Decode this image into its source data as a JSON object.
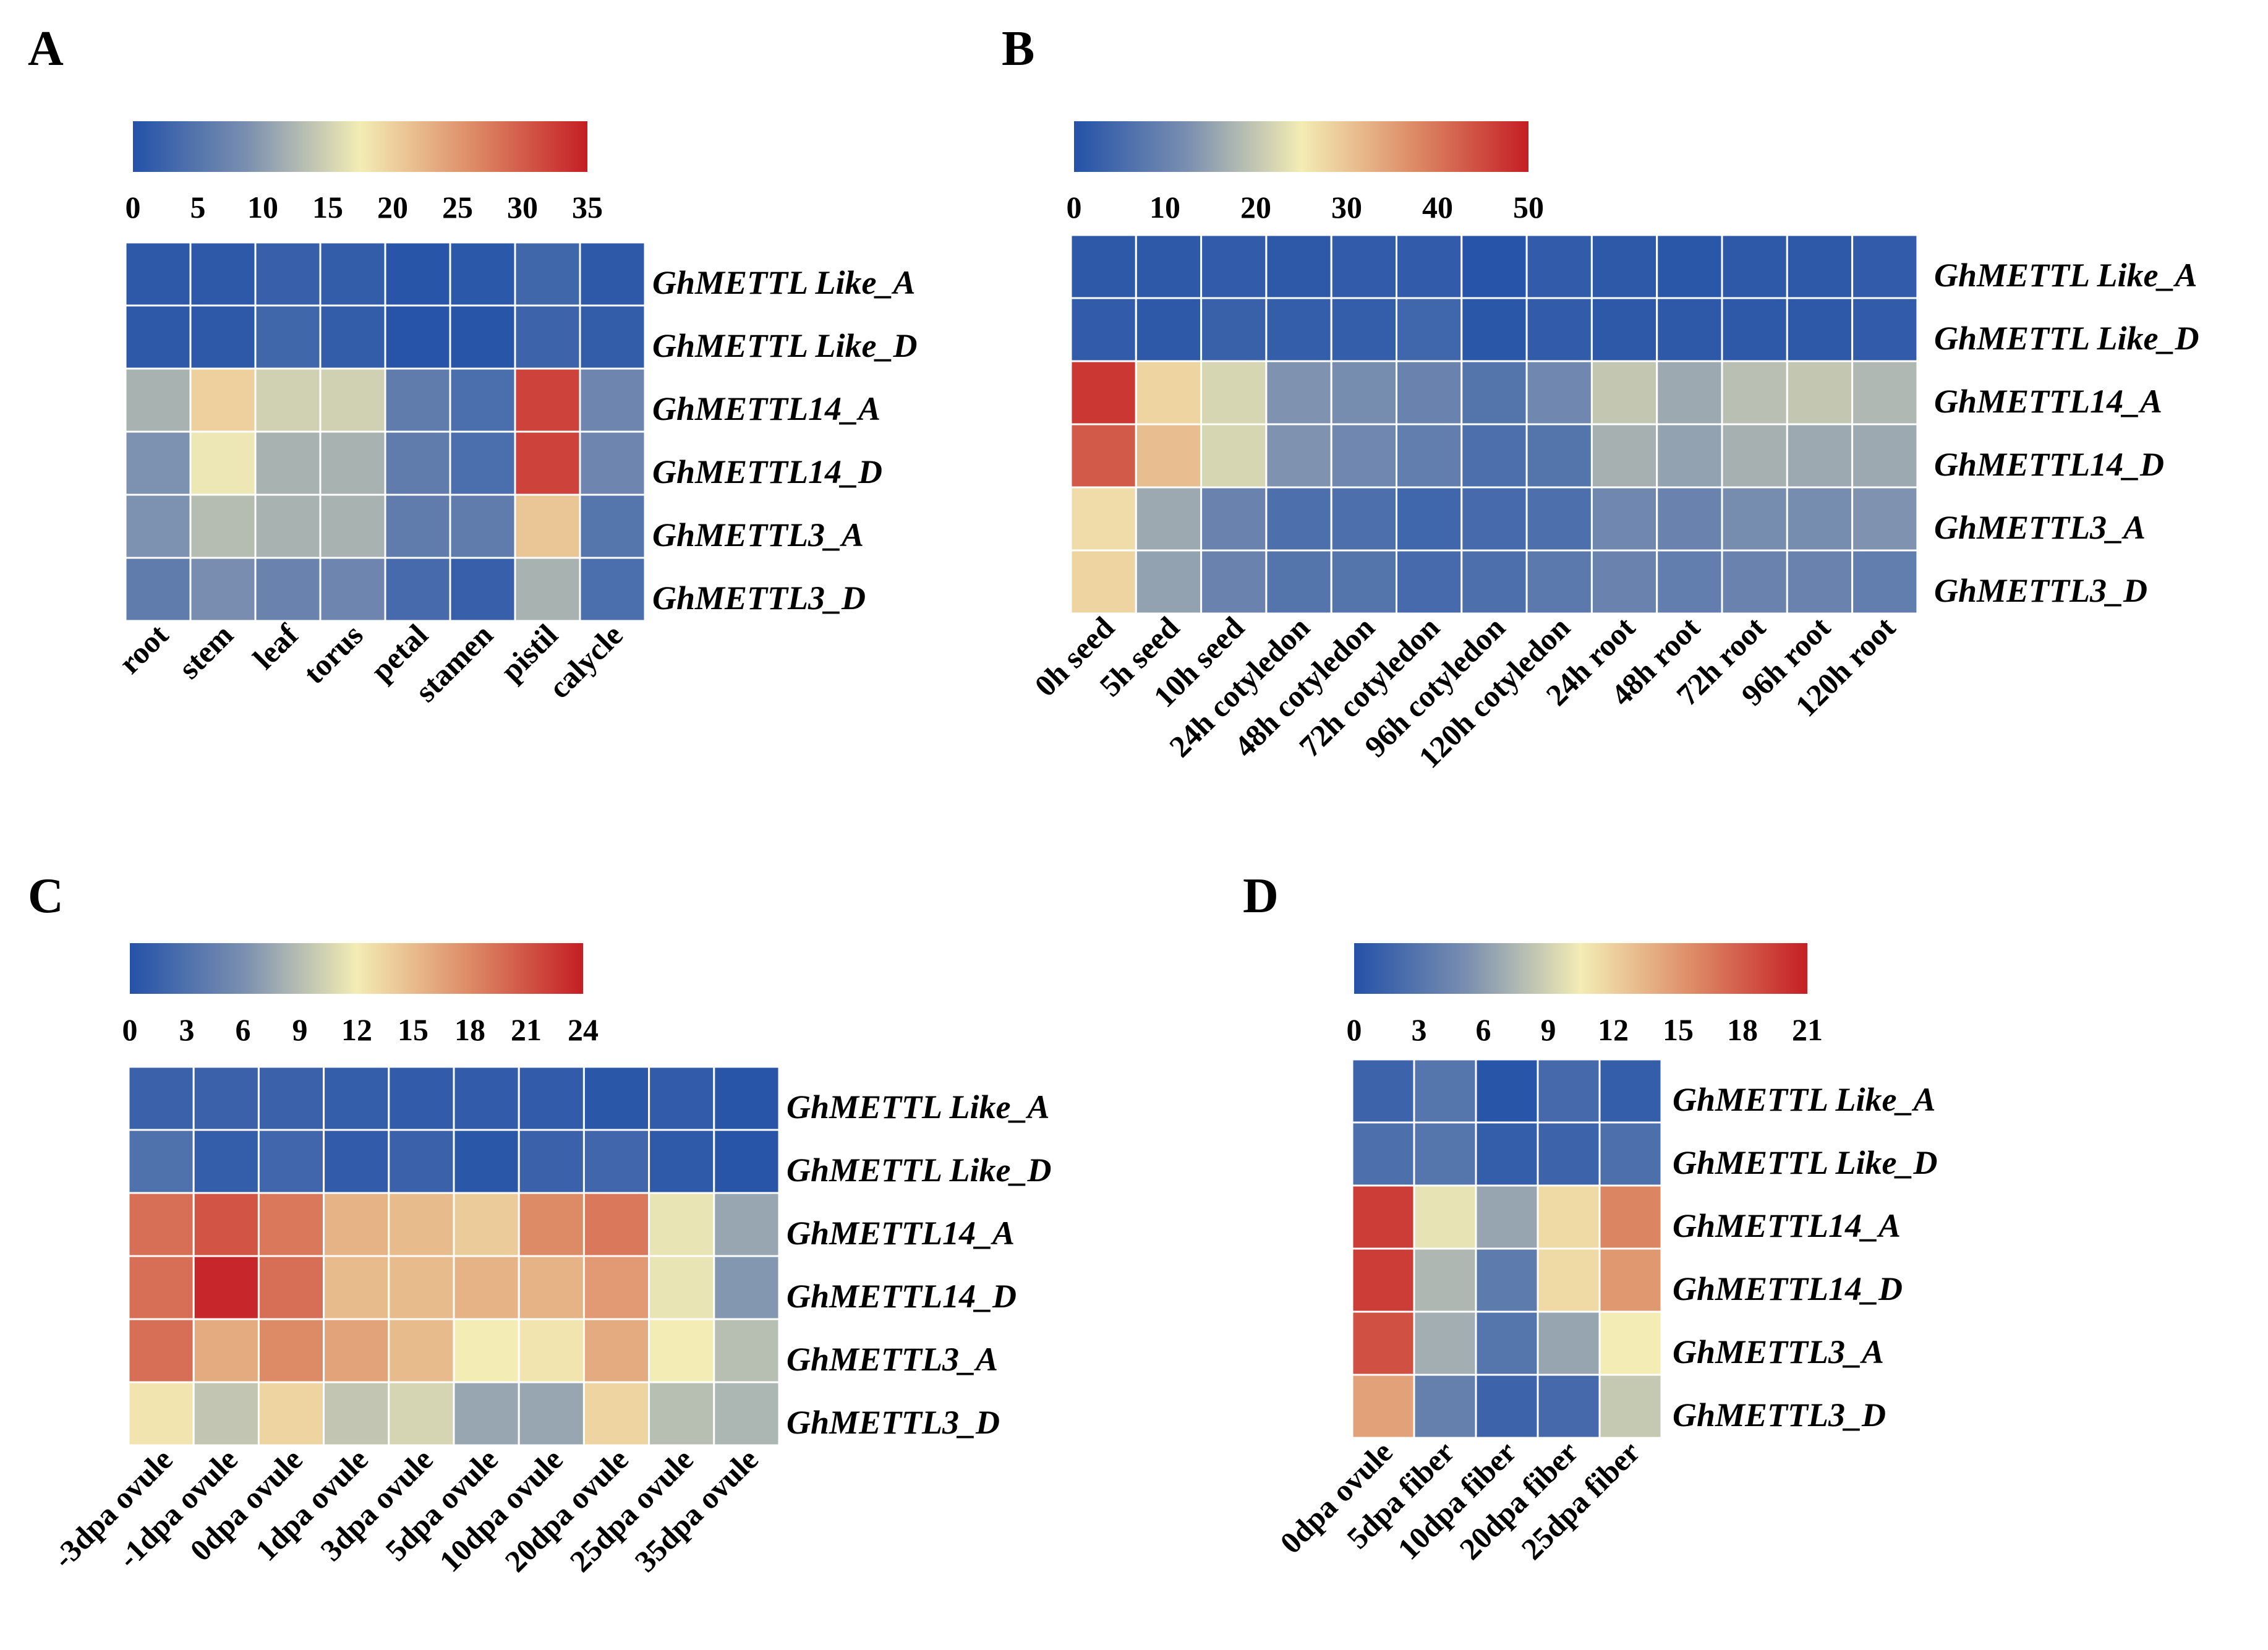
{
  "colorscale": {
    "stops": [
      "#2452a8",
      "#7a8fb0",
      "#f3ecb4",
      "#dd8a66",
      "#c51e24"
    ]
  },
  "chart_data": [
    {
      "type": "heatmap",
      "panel": "A",
      "colorbar_max": 35,
      "colorbar_ticks": [
        0,
        5,
        10,
        15,
        20,
        25,
        30,
        35
      ],
      "rows": [
        "GhMETTL Like_A",
        "GhMETTL Like_D",
        "GhMETTL14_A",
        "GhMETTL14_D",
        "GhMETTL3_A",
        "GhMETTL3_D"
      ],
      "columns": [
        "root",
        "stem",
        "leaf",
        "torus",
        "petal",
        "stamen",
        "pistil",
        "calycle"
      ],
      "values": [
        [
          1,
          1,
          2,
          1.5,
          0.5,
          0.8,
          3,
          1
        ],
        [
          1,
          1,
          3,
          1.5,
          0.3,
          0.5,
          2.5,
          1.5
        ],
        [
          12,
          20,
          15,
          15,
          6,
          4,
          32,
          7.5
        ],
        [
          9,
          17,
          12,
          12,
          6,
          4,
          32,
          7.5
        ],
        [
          9,
          13,
          12,
          12,
          6,
          6,
          21,
          5
        ],
        [
          6,
          8.5,
          7,
          7.5,
          3.5,
          2,
          12,
          4
        ]
      ]
    },
    {
      "type": "heatmap",
      "panel": "B",
      "colorbar_max": 50,
      "colorbar_ticks": [
        0,
        10,
        20,
        30,
        40,
        50
      ],
      "rows": [
        "GhMETTL Like_A",
        "GhMETTL Like_D",
        "GhMETTL14_A",
        "GhMETTL14_D",
        "GhMETTL3_A",
        "GhMETTL3_D"
      ],
      "columns": [
        "0h seed",
        "5h seed",
        "10h seed",
        "24h cotyledon",
        "48h cotyledon",
        "72h cotyledon",
        "96h cotyledon",
        "120h cotyledon",
        "24h root",
        "48h root",
        "72h root",
        "96h root",
        "120h root"
      ],
      "values": [
        [
          1.5,
          1.5,
          2,
          1.5,
          2,
          2,
          0.5,
          2,
          1.5,
          1,
          1.5,
          1.5,
          2
        ],
        [
          2,
          1.5,
          3,
          2.5,
          2.5,
          4,
          1,
          2,
          1.5,
          1.5,
          1.5,
          1.5,
          2
        ],
        [
          47,
          28,
          22,
          13,
          12,
          10,
          7,
          11,
          20,
          16,
          19,
          20,
          18
        ],
        [
          43,
          31,
          22,
          13,
          11,
          9,
          6,
          7,
          17,
          15,
          17,
          16,
          16
        ],
        [
          27,
          16,
          10,
          6,
          6,
          4,
          5,
          6,
          11,
          10,
          12,
          12,
          13
        ],
        [
          28,
          15,
          10,
          7,
          7,
          5,
          6,
          8,
          10,
          9,
          10,
          10,
          9
        ]
      ]
    },
    {
      "type": "heatmap",
      "panel": "C",
      "colorbar_max": 24,
      "colorbar_ticks": [
        0,
        3,
        6,
        9,
        12,
        15,
        18,
        21,
        24
      ],
      "rows": [
        "GhMETTL Like_A",
        "GhMETTL Like_D",
        "GhMETTL14_A",
        "GhMETTL14_D",
        "GhMETTL3_A",
        "GhMETTL3_D"
      ],
      "columns": [
        "-3dpa ovule",
        "-1dpa ovule",
        "0dpa ovule",
        "1dpa ovule",
        "3dpa ovule",
        "5dpa ovule",
        "10dpa ovule",
        "20dpa ovule",
        "25dpa ovule",
        "35dpa ovule"
      ],
      "values": [
        [
          1.5,
          1.5,
          1.5,
          1.2,
          1,
          1,
          1,
          0.5,
          1,
          0.3
        ],
        [
          3,
          1.2,
          2,
          1,
          1.5,
          0.5,
          1.5,
          2,
          0.8,
          0.3
        ],
        [
          19.5,
          21,
          19,
          15.5,
          15,
          14,
          18,
          19,
          11.5,
          7.5
        ],
        [
          19.5,
          23.5,
          19.5,
          15,
          15,
          15.5,
          15.5,
          17,
          11.5,
          6.5
        ],
        [
          19.5,
          16,
          18,
          16.5,
          15,
          12,
          12.5,
          16,
          12,
          9
        ],
        [
          12.5,
          9.5,
          13.5,
          9.5,
          10.5,
          7.5,
          7.5,
          13.5,
          9,
          8.5
        ]
      ]
    },
    {
      "type": "heatmap",
      "panel": "D",
      "colorbar_max": 21,
      "colorbar_ticks": [
        0,
        3,
        6,
        9,
        12,
        15,
        18,
        21
      ],
      "rows": [
        "GhMETTL Like_A",
        "GhMETTL Like_D",
        "GhMETTL14_A",
        "GhMETTL14_D",
        "GhMETTL3_A",
        "GhMETTL3_D"
      ],
      "columns": [
        "0dpa ovule",
        "5dpa fiber",
        "10dpa fiber",
        "20dpa fiber",
        "25dpa fiber"
      ],
      "values": [
        [
          1.5,
          3,
          0.3,
          2,
          1
        ],
        [
          2.5,
          3,
          1,
          1.5,
          2.5
        ],
        [
          19.5,
          10,
          6.5,
          11.5,
          16
        ],
        [
          19.5,
          7.5,
          3.5,
          11.5,
          15
        ],
        [
          18.5,
          7,
          3,
          6.5,
          10.5
        ],
        [
          14.5,
          4,
          1.5,
          2,
          8.5
        ]
      ]
    }
  ]
}
